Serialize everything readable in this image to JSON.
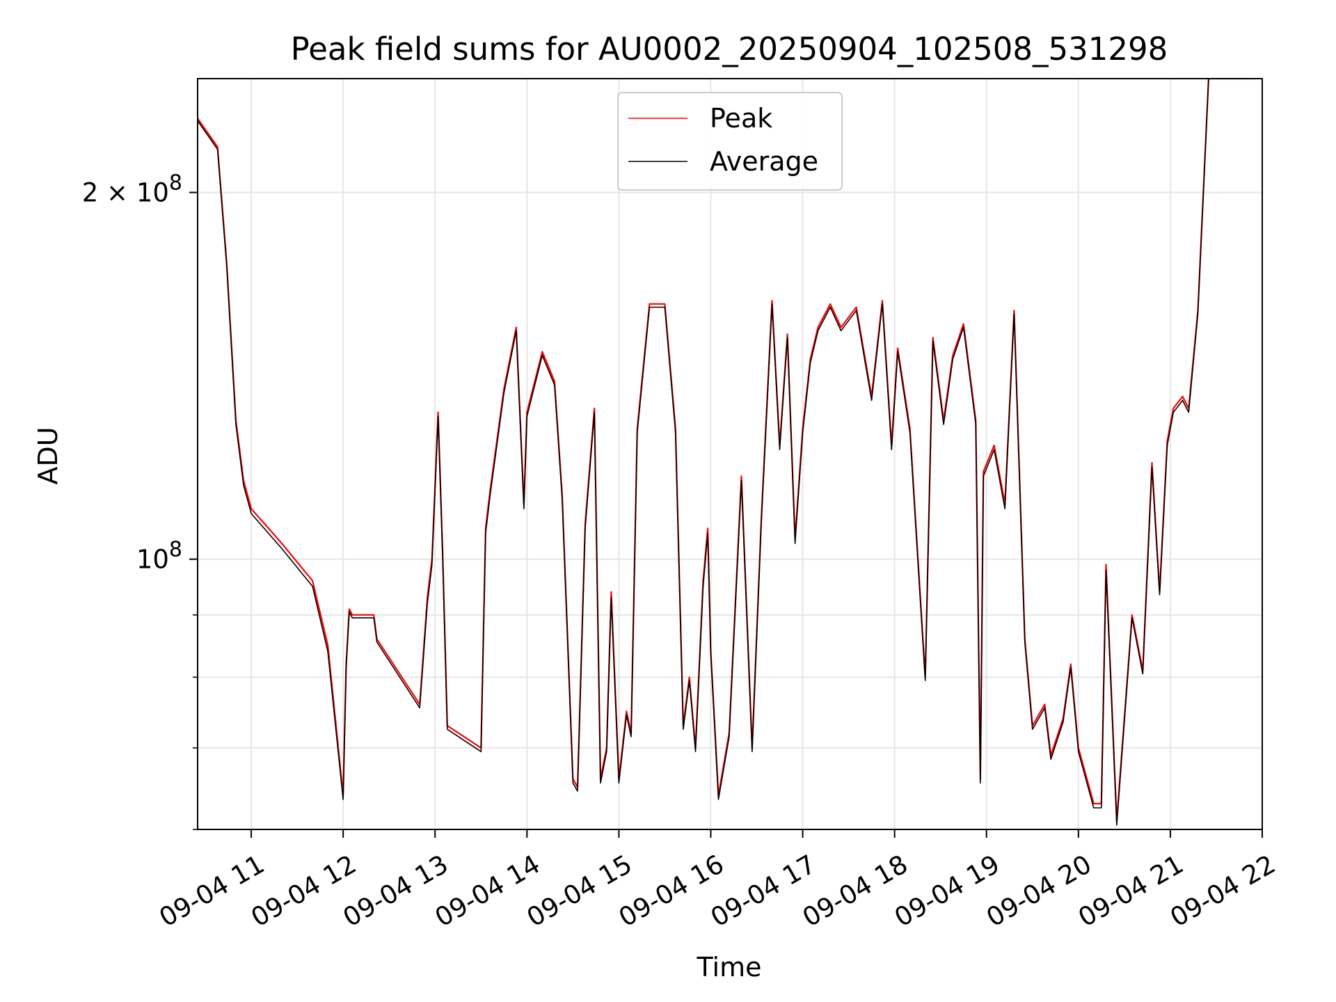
{
  "chart_data": {
    "type": "line",
    "title": "Peak field sums for AU0002_20250904_102508_531298",
    "xlabel": "Time",
    "ylabel": "ADU",
    "yscale": "log",
    "grid": true,
    "legend": {
      "placement": "upper center"
    },
    "xlim": [
      "2025-09-04 10:25",
      "2025-09-04 22:00"
    ],
    "ylim": [
      60000000,
      248000000
    ],
    "x_ticks": [
      {
        "t": "2025-09-04 11:00",
        "label": "09-04 11"
      },
      {
        "t": "2025-09-04 12:00",
        "label": "09-04 12"
      },
      {
        "t": "2025-09-04 13:00",
        "label": "09-04 13"
      },
      {
        "t": "2025-09-04 14:00",
        "label": "09-04 14"
      },
      {
        "t": "2025-09-04 15:00",
        "label": "09-04 15"
      },
      {
        "t": "2025-09-04 16:00",
        "label": "09-04 16"
      },
      {
        "t": "2025-09-04 17:00",
        "label": "09-04 17"
      },
      {
        "t": "2025-09-04 18:00",
        "label": "09-04 18"
      },
      {
        "t": "2025-09-04 19:00",
        "label": "09-04 19"
      },
      {
        "t": "2025-09-04 20:00",
        "label": "09-04 20"
      },
      {
        "t": "2025-09-04 21:00",
        "label": "09-04 21"
      },
      {
        "t": "2025-09-04 22:00",
        "label": "09-04 22"
      }
    ],
    "y_major_ticks": [
      {
        "value": 100000000,
        "base": "10",
        "exp": "8"
      },
      {
        "value": 200000000,
        "base": "2 × 10",
        "exp": "8"
      }
    ],
    "y_minor_ticks": [
      60000000,
      70000000,
      80000000,
      90000000
    ],
    "series": [
      {
        "name": "Peak",
        "color": "#ff0000",
        "x": [
          "2025-09-04 10:25",
          "2025-09-04 10:38",
          "2025-09-04 10:44",
          "2025-09-04 10:50",
          "2025-09-04 10:55",
          "2025-09-04 11:00",
          "2025-09-04 11:20",
          "2025-09-04 11:40",
          "2025-09-04 11:50",
          "2025-09-04 12:00",
          "2025-09-04 12:02",
          "2025-09-04 12:04",
          "2025-09-04 12:06",
          "2025-09-04 12:20",
          "2025-09-04 12:22",
          "2025-09-04 12:50",
          "2025-09-04 12:55",
          "2025-09-04 12:58",
          "2025-09-04 13:02",
          "2025-09-04 13:05",
          "2025-09-04 13:08",
          "2025-09-04 13:30",
          "2025-09-04 13:33",
          "2025-09-04 13:36",
          "2025-09-04 13:45",
          "2025-09-04 13:53",
          "2025-09-04 13:58",
          "2025-09-04 14:00",
          "2025-09-04 14:10",
          "2025-09-04 14:18",
          "2025-09-04 14:23",
          "2025-09-04 14:30",
          "2025-09-04 14:33",
          "2025-09-04 14:38",
          "2025-09-04 14:44",
          "2025-09-04 14:48",
          "2025-09-04 14:52",
          "2025-09-04 14:55",
          "2025-09-04 15:00",
          "2025-09-04 15:05",
          "2025-09-04 15:08",
          "2025-09-04 15:12",
          "2025-09-04 15:20",
          "2025-09-04 15:30",
          "2025-09-04 15:37",
          "2025-09-04 15:42",
          "2025-09-04 15:46",
          "2025-09-04 15:50",
          "2025-09-04 15:55",
          "2025-09-04 15:58",
          "2025-09-04 16:00",
          "2025-09-04 16:05",
          "2025-09-04 16:12",
          "2025-09-04 16:20",
          "2025-09-04 16:27",
          "2025-09-04 16:33",
          "2025-09-04 16:40",
          "2025-09-04 16:45",
          "2025-09-04 16:50",
          "2025-09-04 16:55",
          "2025-09-04 17:00",
          "2025-09-04 17:05",
          "2025-09-04 17:10",
          "2025-09-04 17:18",
          "2025-09-04 17:25",
          "2025-09-04 17:35",
          "2025-09-04 17:45",
          "2025-09-04 17:52",
          "2025-09-04 17:58",
          "2025-09-04 18:02",
          "2025-09-04 18:10",
          "2025-09-04 18:20",
          "2025-09-04 18:25",
          "2025-09-04 18:32",
          "2025-09-04 18:38",
          "2025-09-04 18:45",
          "2025-09-04 18:53",
          "2025-09-04 18:56",
          "2025-09-04 18:58",
          "2025-09-04 19:05",
          "2025-09-04 19:12",
          "2025-09-04 19:18",
          "2025-09-04 19:25",
          "2025-09-04 19:30",
          "2025-09-04 19:38",
          "2025-09-04 19:42",
          "2025-09-04 19:50",
          "2025-09-04 19:55",
          "2025-09-04 20:00",
          "2025-09-04 20:10",
          "2025-09-04 20:15",
          "2025-09-04 20:18",
          "2025-09-04 20:25",
          "2025-09-04 20:35",
          "2025-09-04 20:42",
          "2025-09-04 20:48",
          "2025-09-04 20:53",
          "2025-09-04 20:58",
          "2025-09-04 21:02",
          "2025-09-04 21:08",
          "2025-09-04 21:12",
          "2025-09-04 21:18",
          "2025-09-04 21:25",
          "2025-09-04 21:33",
          "2025-09-04 21:40",
          "2025-09-04 21:45",
          "2025-09-04 21:50",
          "2025-09-04 21:55"
        ],
        "y": [
          230000000,
          218000000,
          175000000,
          130000000,
          116000000,
          110000000,
          103000000,
          96000000,
          85000000,
          64000000,
          82000000,
          91000000,
          90000000,
          90000000,
          86000000,
          76000000,
          93000000,
          100000000,
          132000000,
          101000000,
          73000000,
          70000000,
          106000000,
          114000000,
          138000000,
          155000000,
          111000000,
          132000000,
          148000000,
          140000000,
          113000000,
          66000000,
          65000000,
          107000000,
          133000000,
          66000000,
          70000000,
          94000000,
          66000000,
          75000000,
          72000000,
          128000000,
          162000000,
          162000000,
          128000000,
          73000000,
          80000000,
          70000000,
          96000000,
          106000000,
          84000000,
          64000000,
          72000000,
          117000000,
          70000000,
          108000000,
          163000000,
          124000000,
          153000000,
          104000000,
          128000000,
          146000000,
          155000000,
          162000000,
          155000000,
          161000000,
          136000000,
          163000000,
          124000000,
          149000000,
          128000000,
          80000000,
          152000000,
          130000000,
          147000000,
          156000000,
          130000000,
          66000000,
          118000000,
          124000000,
          111000000,
          160000000,
          86000000,
          73000000,
          76000000,
          69000000,
          74000000,
          82000000,
          70000000,
          63000000,
          63000000,
          99000000,
          61000000,
          90000000,
          81000000,
          120000000,
          94000000,
          125000000,
          133000000,
          136000000,
          133000000,
          160000000,
          248000000,
          248000000,
          248000000,
          248000000,
          248000000,
          248000000
        ]
      },
      {
        "name": "Average",
        "color": "#000000",
        "x": [
          "2025-09-04 10:25",
          "2025-09-04 10:38",
          "2025-09-04 10:44",
          "2025-09-04 10:50",
          "2025-09-04 10:55",
          "2025-09-04 11:00",
          "2025-09-04 11:20",
          "2025-09-04 11:40",
          "2025-09-04 11:50",
          "2025-09-04 12:00",
          "2025-09-04 12:02",
          "2025-09-04 12:04",
          "2025-09-04 12:06",
          "2025-09-04 12:20",
          "2025-09-04 12:22",
          "2025-09-04 12:50",
          "2025-09-04 12:55",
          "2025-09-04 12:58",
          "2025-09-04 13:02",
          "2025-09-04 13:05",
          "2025-09-04 13:08",
          "2025-09-04 13:30",
          "2025-09-04 13:33",
          "2025-09-04 13:36",
          "2025-09-04 13:45",
          "2025-09-04 13:53",
          "2025-09-04 13:58",
          "2025-09-04 14:00",
          "2025-09-04 14:10",
          "2025-09-04 14:18",
          "2025-09-04 14:23",
          "2025-09-04 14:30",
          "2025-09-04 14:33",
          "2025-09-04 14:38",
          "2025-09-04 14:44",
          "2025-09-04 14:48",
          "2025-09-04 14:52",
          "2025-09-04 14:55",
          "2025-09-04 15:00",
          "2025-09-04 15:05",
          "2025-09-04 15:08",
          "2025-09-04 15:12",
          "2025-09-04 15:20",
          "2025-09-04 15:30",
          "2025-09-04 15:37",
          "2025-09-04 15:42",
          "2025-09-04 15:46",
          "2025-09-04 15:50",
          "2025-09-04 15:55",
          "2025-09-04 15:58",
          "2025-09-04 16:00",
          "2025-09-04 16:05",
          "2025-09-04 16:12",
          "2025-09-04 16:20",
          "2025-09-04 16:27",
          "2025-09-04 16:33",
          "2025-09-04 16:40",
          "2025-09-04 16:45",
          "2025-09-04 16:50",
          "2025-09-04 16:55",
          "2025-09-04 17:00",
          "2025-09-04 17:05",
          "2025-09-04 17:10",
          "2025-09-04 17:18",
          "2025-09-04 17:25",
          "2025-09-04 17:35",
          "2025-09-04 17:45",
          "2025-09-04 17:52",
          "2025-09-04 17:58",
          "2025-09-04 18:02",
          "2025-09-04 18:10",
          "2025-09-04 18:20",
          "2025-09-04 18:25",
          "2025-09-04 18:32",
          "2025-09-04 18:38",
          "2025-09-04 18:45",
          "2025-09-04 18:53",
          "2025-09-04 18:56",
          "2025-09-04 18:58",
          "2025-09-04 19:05",
          "2025-09-04 19:12",
          "2025-09-04 19:18",
          "2025-09-04 19:25",
          "2025-09-04 19:30",
          "2025-09-04 19:38",
          "2025-09-04 19:42",
          "2025-09-04 19:50",
          "2025-09-04 19:55",
          "2025-09-04 20:00",
          "2025-09-04 20:10",
          "2025-09-04 20:15",
          "2025-09-04 20:18",
          "2025-09-04 20:25",
          "2025-09-04 20:35",
          "2025-09-04 20:42",
          "2025-09-04 20:48",
          "2025-09-04 20:53",
          "2025-09-04 20:58",
          "2025-09-04 21:02",
          "2025-09-04 21:08",
          "2025-09-04 21:12",
          "2025-09-04 21:18",
          "2025-09-04 21:25",
          "2025-09-04 21:33",
          "2025-09-04 21:40",
          "2025-09-04 21:45",
          "2025-09-04 21:50",
          "2025-09-04 21:55"
        ],
        "y": [
          229000000,
          217000000,
          174000000,
          129000000,
          115000000,
          109000000,
          102000000,
          95000000,
          84000000,
          63500000,
          81500000,
          90500000,
          89500000,
          89500000,
          85500000,
          75500000,
          92000000,
          99000000,
          131000000,
          100000000,
          72500000,
          69500000,
          105000000,
          113000000,
          137000000,
          154000000,
          110000000,
          131000000,
          147000000,
          139000000,
          112000000,
          65500000,
          64500000,
          106000000,
          132000000,
          65500000,
          69500000,
          93000000,
          65500000,
          74500000,
          71500000,
          127000000,
          161000000,
          161000000,
          127000000,
          72500000,
          79500000,
          69500000,
          95000000,
          105000000,
          83500000,
          63500000,
          71500000,
          116000000,
          69500000,
          107000000,
          162000000,
          123000000,
          152000000,
          103000000,
          127000000,
          145000000,
          154000000,
          161000000,
          154000000,
          160000000,
          135000000,
          162000000,
          123000000,
          148000000,
          127000000,
          79500000,
          151000000,
          129000000,
          146000000,
          155000000,
          129000000,
          65500000,
          117000000,
          123000000,
          110000000,
          159000000,
          85500000,
          72500000,
          75500000,
          68500000,
          73500000,
          81500000,
          69500000,
          62500000,
          62500000,
          98000000,
          60500000,
          89500000,
          80500000,
          119000000,
          93500000,
          124000000,
          132000000,
          135000000,
          132000000,
          159000000,
          248000000,
          248000000,
          248000000,
          248000000,
          248000000,
          248000000
        ]
      }
    ]
  }
}
